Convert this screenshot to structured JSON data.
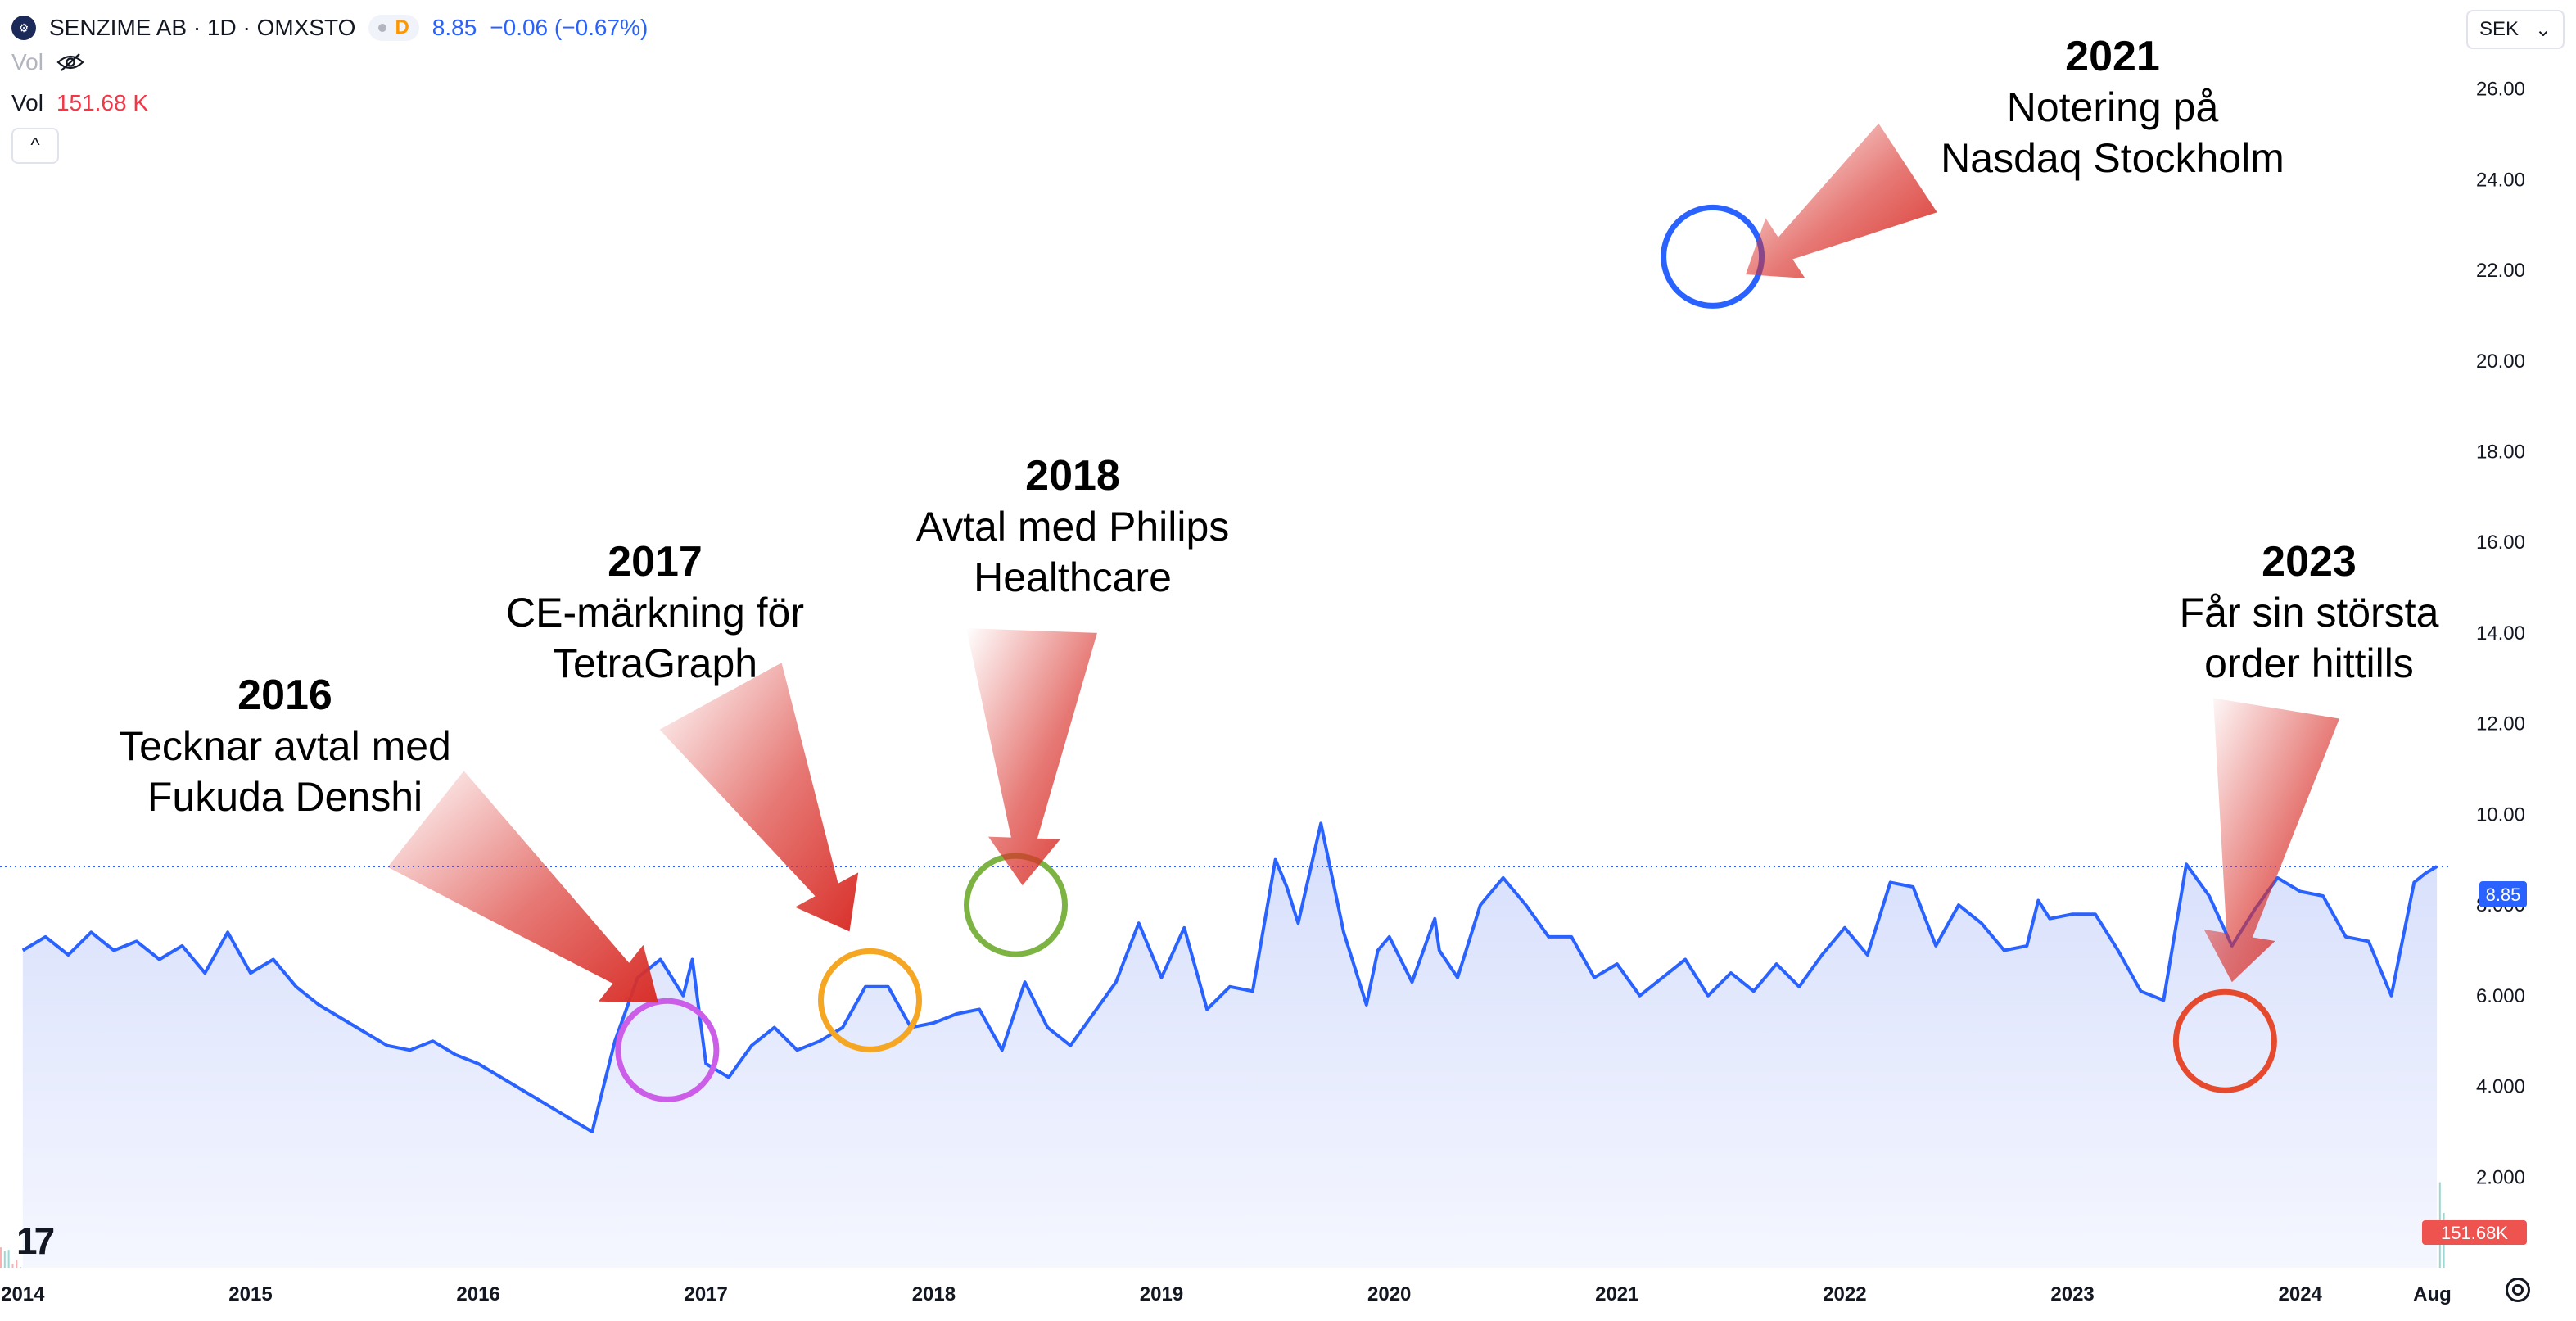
{
  "header": {
    "symbol": "SENZIME AB · 1D · OMXSTO",
    "interval_badge": "D",
    "last_price": "8.85",
    "change": "−0.06 (−0.67%)",
    "vol_label": "Vol",
    "vol_label2": "Vol",
    "vol_value": "151.68 K",
    "collapse_glyph": "^"
  },
  "currency": {
    "selected": "SEK",
    "chevron": "⌄"
  },
  "colors": {
    "line": "#2962ff",
    "area_top": "#d6defb",
    "area_bottom": "#f5f7ff",
    "vol_up": "#26a69a",
    "vol_down": "#ef5350",
    "arrow": "#d9302a",
    "text": "#131722"
  },
  "chart_data": {
    "type": "line",
    "title": "SENZIME AB · 1D · OMXSTO",
    "xlabel": "",
    "ylabel": "",
    "x_ticks": [
      "2014",
      "2015",
      "2016",
      "2017",
      "2018",
      "2019",
      "2020",
      "2021",
      "2022",
      "2023",
      "2024",
      "Aug"
    ],
    "y_ticks": [
      "2.000",
      "4.000",
      "6.000",
      "8.000",
      "10.00",
      "12.00",
      "14.00",
      "16.00",
      "18.00",
      "20.00",
      "22.00",
      "24.00",
      "26.00"
    ],
    "ylim": [
      0,
      27.6
    ],
    "xlim": [
      2013.9,
      2024.65
    ],
    "last_price_label": "8.85",
    "last_volume_label": "151.68K",
    "grid": false,
    "series": [
      {
        "x": [
          2014.0,
          2014.1,
          2014.2,
          2014.3,
          2014.4,
          2014.5,
          2014.6,
          2014.7,
          2014.8,
          2014.9,
          2015.0,
          2015.1,
          2015.2,
          2015.3,
          2015.4,
          2015.5,
          2015.6,
          2015.7,
          2015.8,
          2015.9,
          2016.0,
          2016.1,
          2016.2,
          2016.3,
          2016.4,
          2016.5,
          2016.6,
          2016.7,
          2016.8,
          2016.9,
          2016.94,
          2017.0,
          2017.1,
          2017.2,
          2017.3,
          2017.4,
          2017.5,
          2017.6,
          2017.7,
          2017.8,
          2017.9,
          2018.0,
          2018.1,
          2018.2,
          2018.3,
          2018.4,
          2018.5,
          2018.6,
          2018.7,
          2018.8,
          2018.9,
          2019.0,
          2019.1,
          2019.2,
          2019.3,
          2019.4,
          2019.5,
          2019.55,
          2019.6,
          2019.7,
          2019.8,
          2019.9,
          2019.95,
          2020.0,
          2020.1,
          2020.2,
          2020.22,
          2020.3,
          2020.4,
          2020.5,
          2020.6,
          2020.7,
          2020.8,
          2020.9,
          2021.0,
          2021.1,
          2021.2,
          2021.3,
          2021.4,
          2021.5,
          2021.6,
          2021.7,
          2021.8,
          2021.9,
          2022.0,
          2022.1,
          2022.2,
          2022.3,
          2022.4,
          2022.5,
          2022.6,
          2022.7,
          2022.8,
          2022.85,
          2022.9,
          2023.0,
          2023.1,
          2023.2,
          2023.3,
          2023.4,
          2023.5,
          2023.6,
          2023.7,
          2023.8,
          2023.9,
          2024.0,
          2024.1,
          2024.2,
          2024.3,
          2024.4,
          2024.5,
          2024.55,
          2024.6
        ],
        "y": [
          7.0,
          7.3,
          6.9,
          7.4,
          7.0,
          7.2,
          6.8,
          7.1,
          6.5,
          7.4,
          6.5,
          6.8,
          6.2,
          5.8,
          5.5,
          5.2,
          4.9,
          4.8,
          5.0,
          4.7,
          4.5,
          4.2,
          3.9,
          3.6,
          3.3,
          3.0,
          5.0,
          6.4,
          6.8,
          6.0,
          6.8,
          4.5,
          4.2,
          4.9,
          5.3,
          4.8,
          5.0,
          5.3,
          6.2,
          6.2,
          5.3,
          5.4,
          5.6,
          5.7,
          4.8,
          6.3,
          5.3,
          4.9,
          5.6,
          6.3,
          7.6,
          6.4,
          7.5,
          5.7,
          6.2,
          6.1,
          9.0,
          8.4,
          7.6,
          9.8,
          7.4,
          5.8,
          7.0,
          7.3,
          6.3,
          7.7,
          7.0,
          6.4,
          8.0,
          8.6,
          8.0,
          7.3,
          7.3,
          6.4,
          6.7,
          6.0,
          6.4,
          6.8,
          6.0,
          6.5,
          6.1,
          6.7,
          6.2,
          6.9,
          7.5,
          6.9,
          8.5,
          8.4,
          7.1,
          8.0,
          7.6,
          7.0,
          7.1,
          8.1,
          7.7,
          7.8,
          7.8,
          7.0,
          6.1,
          5.9,
          8.9,
          8.2,
          7.1,
          7.9,
          8.6,
          8.3,
          8.2,
          7.3,
          7.2,
          6.0,
          8.5,
          8.7,
          8.85
        ]
      }
    ],
    "annotations": [
      {
        "year": "2016",
        "text1": "Tecknar avtal med",
        "text2": "Fukuda Denshi"
      },
      {
        "year": "2017",
        "text1": "CE-märkning för",
        "text2": "TetraGraph"
      },
      {
        "year": "2018",
        "text1": "Avtal med Philips",
        "text2": "Healthcare"
      },
      {
        "year": "2021",
        "text1": "Notering på",
        "text2": "Nasdaq Stockholm"
      },
      {
        "year": "2023",
        "text1": "Får sin största",
        "text2": "order hittills"
      }
    ],
    "highlights": [
      {
        "x": 2016.83,
        "y": 4.8,
        "color": "#cc5de8"
      },
      {
        "x": 2017.72,
        "y": 5.9,
        "color": "#f5a623"
      },
      {
        "x": 2018.36,
        "y": 8.0,
        "color": "#7cb342"
      },
      {
        "x": 2021.42,
        "y": 22.3,
        "color": "#2962ff"
      },
      {
        "x": 2023.67,
        "y": 5.0,
        "color": "#e64a2e"
      }
    ]
  }
}
